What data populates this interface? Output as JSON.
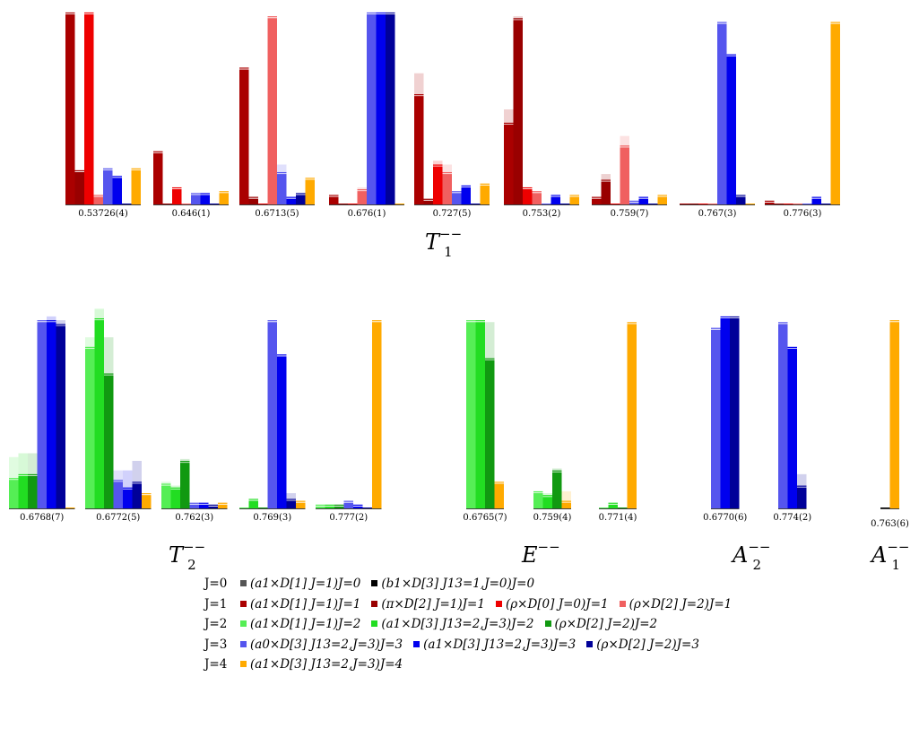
{
  "colors": {
    "J0_a1": "#555555",
    "J0_b1": "#000000",
    "J1_a1": "#aa0000",
    "J1_pi": "#990000",
    "J1_rho0": "#ee0000",
    "J1_rho2": "#f06060",
    "J2_a1": "#55ee55",
    "J2_a1b": "#22dd22",
    "J2_rho": "#119911",
    "J3_a0": "#5555ee",
    "J3_a1": "#0000ee",
    "J3_rho": "#000099",
    "J4": "#ffaa00"
  },
  "chart_data": [
    {
      "type": "bar",
      "title": "T_1^{--}",
      "categories": [
        "0.53726(4)",
        "0.646(1)",
        "0.6713(5)",
        "0.676(1)",
        "0.727(5)",
        "0.753(2)",
        "0.759(7)",
        "0.767(3)",
        "0.776(3)"
      ],
      "series_keys": [
        "J1_a1",
        "J1_pi",
        "J1_rho0",
        "J1_rho2",
        "J3_a0",
        "J3_a1",
        "J3_rho",
        "J4"
      ],
      "values": [
        [
          1.0,
          0.17,
          1.0,
          0.04,
          0.18,
          0.14,
          0.0,
          0.18
        ],
        [
          0.27,
          0.0,
          0.08,
          0.0,
          0.05,
          0.05,
          0.0,
          0.06
        ],
        [
          0.71,
          0.03,
          0.0,
          0.98,
          0.16,
          0.03,
          0.05,
          0.13
        ],
        [
          0.04,
          0.0,
          0.0,
          0.07,
          1.0,
          1.0,
          1.0,
          0.0
        ],
        [
          0.57,
          0.02,
          0.2,
          0.16,
          0.06,
          0.09,
          0.0,
          0.1
        ],
        [
          0.42,
          0.97,
          0.08,
          0.06,
          0.0,
          0.04,
          0.0,
          0.04
        ],
        [
          0.03,
          0.12,
          0.0,
          0.3,
          0.01,
          0.03,
          0.0,
          0.04
        ],
        [
          0.0,
          0.0,
          0.0,
          0.0,
          0.95,
          0.78,
          0.04,
          0.0
        ],
        [
          0.01,
          0.0,
          0.0,
          0.0,
          0.0,
          0.03,
          0.0,
          0.95
        ]
      ],
      "errors": [
        [
          0,
          0,
          0,
          0,
          0,
          0,
          0,
          0
        ],
        [
          0,
          0,
          0,
          0,
          0,
          0,
          0,
          0
        ],
        [
          0,
          0,
          0,
          0,
          0.05,
          0,
          0,
          0
        ],
        [
          0,
          0,
          0,
          0.02,
          0,
          0,
          0,
          0
        ],
        [
          0.12,
          0,
          0.03,
          0.05,
          0,
          0,
          0,
          0
        ],
        [
          0.08,
          0.02,
          0,
          0,
          0,
          0,
          0,
          0
        ],
        [
          0,
          0.04,
          0,
          0.06,
          0,
          0,
          0,
          0
        ],
        [
          0,
          0,
          0,
          0,
          0,
          0,
          0,
          0
        ],
        [
          0,
          0,
          0,
          0,
          0,
          0,
          0,
          0
        ]
      ]
    },
    {
      "type": "bar",
      "title": "T_2^{--}",
      "categories": [
        "0.6768(7)",
        "0.6772(5)",
        "0.762(3)",
        "0.769(3)",
        "0.777(2)"
      ],
      "series_keys": [
        "J2_a1",
        "J2_a1b",
        "J2_rho",
        "J3_a0",
        "J3_a1",
        "J3_rho",
        "J4"
      ],
      "values": [
        [
          0.15,
          0.17,
          0.17,
          0.98,
          0.98,
          0.96,
          0.0
        ],
        [
          0.84,
          0.99,
          0.7,
          0.14,
          0.1,
          0.13,
          0.07
        ],
        [
          0.12,
          0.1,
          0.24,
          0.02,
          0.02,
          0.01,
          0.02
        ],
        [
          0.0,
          0.04,
          0.0,
          0.98,
          0.8,
          0.04,
          0.03
        ],
        [
          0.01,
          0.01,
          0.01,
          0.03,
          0.01,
          0.0,
          0.98
        ]
      ],
      "errors": [
        [
          0.12,
          0.12,
          0.12,
          0,
          0.03,
          0.03,
          0
        ],
        [
          0.06,
          0.06,
          0.2,
          0.06,
          0.1,
          0.12,
          0
        ],
        [
          0.02,
          0.02,
          0.02,
          0,
          0,
          0,
          0
        ],
        [
          0,
          0,
          0,
          0,
          0,
          0.04,
          0
        ],
        [
          0,
          0,
          0,
          0,
          0,
          0,
          0
        ]
      ]
    },
    {
      "type": "bar",
      "title": "E^{--}",
      "categories": [
        "0.6765(7)",
        "0.759(4)",
        "0.771(4)"
      ],
      "series_keys": [
        "J2_a1",
        "J2_a1b",
        "J2_rho",
        "J4"
      ],
      "values": [
        [
          0.98,
          0.98,
          0.78,
          0.13
        ],
        [
          0.08,
          0.06,
          0.19,
          0.03
        ],
        [
          0.0,
          0.02,
          0.0,
          0.97
        ]
      ],
      "errors": [
        [
          0,
          0,
          0.2,
          0
        ],
        [
          0.01,
          0.02,
          0.02,
          0.06
        ],
        [
          0,
          0,
          0,
          0
        ]
      ]
    },
    {
      "type": "bar",
      "title": "A_2^{--}",
      "categories": [
        "0.6770(6)",
        "0.774(2)"
      ],
      "series_keys": [
        "J3_a0",
        "J3_a1",
        "J3_rho"
      ],
      "values": [
        [
          0.94,
          1.0,
          1.0
        ],
        [
          0.97,
          0.84,
          0.11
        ]
      ],
      "errors": [
        [
          0,
          0,
          0
        ],
        [
          0,
          0.01,
          0.07
        ]
      ]
    },
    {
      "type": "bar",
      "title": "A_1^{--}",
      "categories": [
        "0.763(6)"
      ],
      "series_keys": [
        "J0_b1",
        "J4"
      ],
      "values": [
        [
          0.0,
          0.98
        ]
      ],
      "errors": [
        [
          0,
          0
        ]
      ]
    }
  ],
  "legend": {
    "rows": [
      {
        "j": "J=0",
        "items": [
          {
            "key": "J0_a1",
            "text": "(a1×D[1] J=1)J=0"
          },
          {
            "key": "J0_b1",
            "text": "(b1×D[3] J13=1,J=0)J=0"
          }
        ]
      },
      {
        "j": "J=1",
        "items": [
          {
            "key": "J1_a1",
            "text": "(a1×D[1] J=1)J=1"
          },
          {
            "key": "J1_pi",
            "text": "(π×D[2] J=1)J=1"
          },
          {
            "key": "J1_rho0",
            "text": "(ρ×D[0] J=0)J=1"
          },
          {
            "key": "J1_rho2",
            "text": "(ρ×D[2] J=2)J=1"
          }
        ]
      },
      {
        "j": "J=2",
        "items": [
          {
            "key": "J2_a1",
            "text": "(a1×D[1] J=1)J=2"
          },
          {
            "key": "J2_a1b",
            "text": "(a1×D[3] J13=2,J=3)J=2"
          },
          {
            "key": "J2_rho",
            "text": "(ρ×D[2] J=2)J=2"
          }
        ]
      },
      {
        "j": "J=3",
        "items": [
          {
            "key": "J3_a0",
            "text": "(a0×D[3] J13=2,J=3)J=3"
          },
          {
            "key": "J3_a1",
            "text": "(a1×D[3] J13=2,J=3)J=3"
          },
          {
            "key": "J3_rho",
            "text": "(ρ×D[2] J=2)J=3"
          }
        ]
      },
      {
        "j": "J=4",
        "items": [
          {
            "key": "J4",
            "text": "(a1×D[3] J13=2,J=3)J=4"
          }
        ]
      }
    ]
  }
}
